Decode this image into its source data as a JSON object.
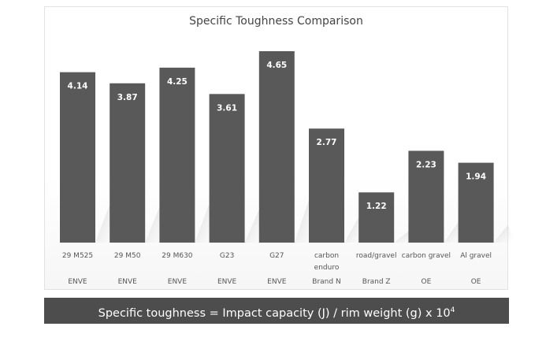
{
  "chart_data": {
    "type": "bar",
    "title": "Specific Toughness Comparison",
    "categories": [
      "29 M525",
      "29 M50",
      "29 M630",
      "G23",
      "G27",
      "carbon enduro",
      "road/gravel",
      "carbon gravel",
      "Al gravel"
    ],
    "brands": [
      "ENVE",
      "ENVE",
      "ENVE",
      "ENVE",
      "ENVE",
      "Brand N",
      "Brand Z",
      "OE",
      "OE"
    ],
    "values": [
      4.14,
      3.87,
      4.25,
      3.61,
      4.65,
      2.77,
      1.22,
      2.23,
      1.94
    ],
    "data_labels": [
      "4.14",
      "3.87",
      "4.25",
      "3.61",
      "4.65",
      "2.77",
      "1.22",
      "2.23",
      "1.94"
    ],
    "bar_color": "#595959",
    "grid": false,
    "ylim": [
      0,
      4.65
    ]
  },
  "footer": {
    "text": "Specific toughness = Impact capacity (J) / rim weight (g) x 10",
    "sup": "4"
  }
}
